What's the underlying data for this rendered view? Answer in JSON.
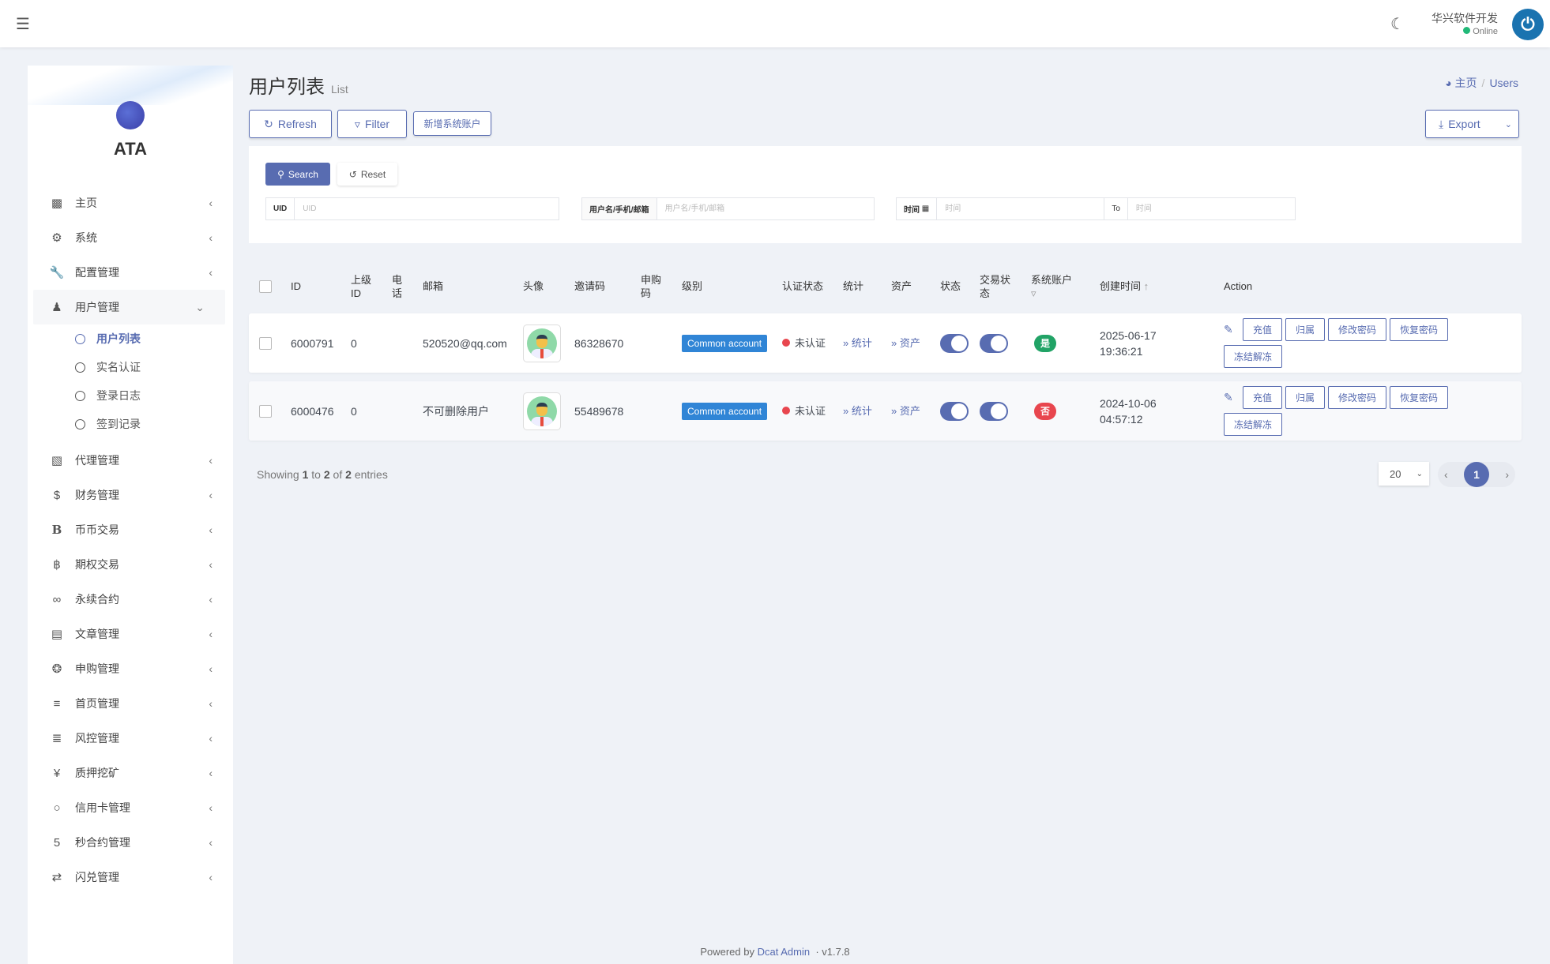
{
  "header": {
    "menu_icon": "hamburger-icon",
    "theme_icon": "moon-icon",
    "user_name": "华兴软件开发",
    "status": "Online",
    "status_color": "#21b978"
  },
  "sidebar": {
    "brand": "ATA",
    "items": [
      {
        "label": "主页",
        "icon": "bar-chart-icon"
      },
      {
        "label": "系统",
        "icon": "gear-icon"
      },
      {
        "label": "配置管理",
        "icon": "wrench-icon"
      },
      {
        "label": "用户管理",
        "icon": "user-icon",
        "open": true,
        "children": [
          {
            "label": "用户列表",
            "active": true
          },
          {
            "label": "实名认证"
          },
          {
            "label": "登录日志"
          },
          {
            "label": "签到记录"
          }
        ]
      },
      {
        "label": "代理管理",
        "icon": "id-card-icon"
      },
      {
        "label": "财务管理",
        "icon": "dollar-icon"
      },
      {
        "label": "币币交易",
        "icon": "b-icon"
      },
      {
        "label": "期权交易",
        "icon": "bitcoin-icon"
      },
      {
        "label": "永续合约",
        "icon": "link-icon"
      },
      {
        "label": "文章管理",
        "icon": "newspaper-icon"
      },
      {
        "label": "申购管理",
        "icon": "lifebuoy-icon"
      },
      {
        "label": "首页管理",
        "icon": "list-icon"
      },
      {
        "label": "风控管理",
        "icon": "indent-icon"
      },
      {
        "label": "质押挖矿",
        "icon": "yen-icon"
      },
      {
        "label": "信用卡管理",
        "icon": "circle-icon"
      },
      {
        "label": "秒合约管理",
        "icon": "five-icon"
      },
      {
        "label": "闪兑管理",
        "icon": "exchange-icon"
      }
    ]
  },
  "page": {
    "title": "用户列表",
    "subtitle": "List",
    "breadcrumb": [
      "主页",
      "Users"
    ]
  },
  "toolbar": {
    "refresh": "Refresh",
    "filter": "Filter",
    "add_system": "新增系统账户",
    "export": "Export"
  },
  "filter": {
    "search": "Search",
    "reset": "Reset",
    "uid_label": "UID",
    "uid_placeholder": "UID",
    "name_label": "用户名/手机/邮箱",
    "name_placeholder": "用户名/手机/邮箱",
    "time_label": "时间",
    "time_placeholder": "时间",
    "to": "To",
    "time_to_placeholder": "时间"
  },
  "table": {
    "headers": [
      "ID",
      "上级ID",
      "电话",
      "邮箱",
      "头像",
      "邀请码",
      "申购码",
      "级别",
      "认证状态",
      "统计",
      "资产",
      "状态",
      "交易状态",
      "系统账户",
      "创建时间",
      "Action"
    ],
    "rows": [
      {
        "id": "6000791",
        "parent_id": "0",
        "phone": "",
        "email": "520520@qq.com",
        "invite_code": "86328670",
        "purchase_code": "",
        "level": "Common account",
        "auth": "未认证",
        "stats": "» 统计",
        "assets": "» 资产",
        "status_on": true,
        "trade_on": true,
        "system": "是",
        "system_color": "#21a366",
        "created": "2025-06-17 19:36:21"
      },
      {
        "id": "6000476",
        "parent_id": "0",
        "phone": "",
        "email": "不可删除用户",
        "invite_code": "55489678",
        "purchase_code": "",
        "level": "Common account",
        "auth": "未认证",
        "stats": "» 统计",
        "assets": "» 资产",
        "status_on": true,
        "trade_on": true,
        "system": "否",
        "system_color": "#e8464e",
        "created": "2024-10-06 04:57:12"
      }
    ],
    "actions": [
      "充值",
      "归属",
      "修改密码",
      "恢复密码",
      "冻结解冻"
    ]
  },
  "pagination": {
    "showing": "Showing",
    "from": "1",
    "to_word": "to",
    "to": "2",
    "of_word": "of",
    "total": "2",
    "entries": "entries",
    "per_page": "20",
    "current": "1"
  },
  "footer": {
    "powered": "Powered by",
    "link": "Dcat Admin",
    "version": "· v1.7.8"
  },
  "colors": {
    "accent": "#586cb1",
    "level_badge": "#3085d6"
  }
}
